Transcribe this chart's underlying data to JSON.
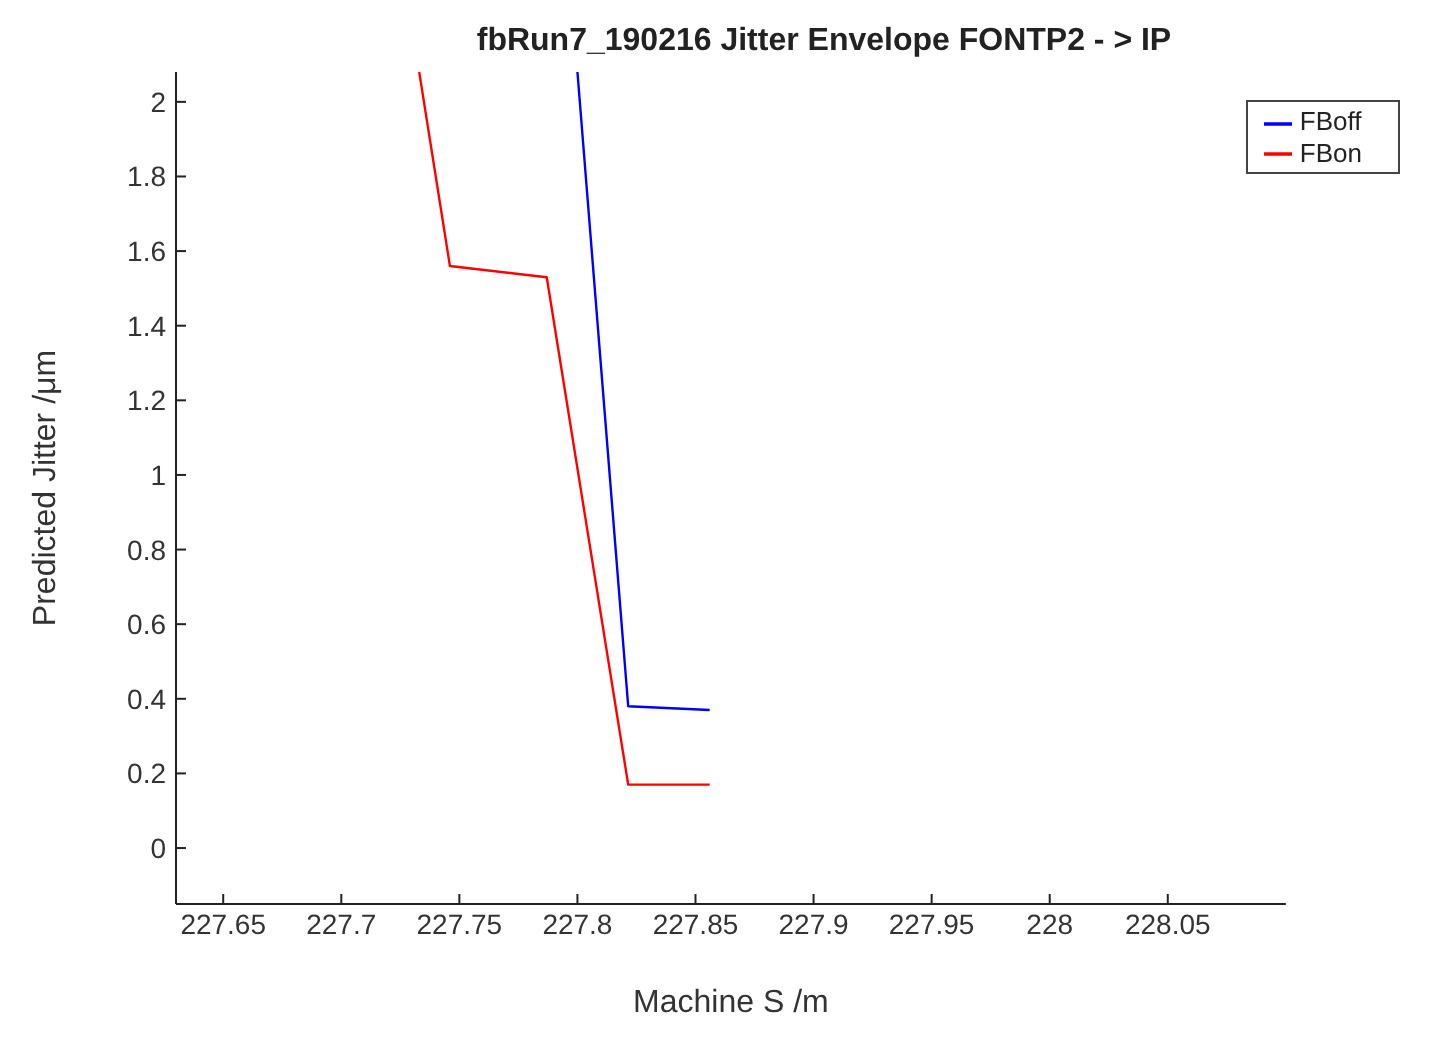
{
  "chart_data": {
    "type": "line",
    "title": "fbRun7_190216 Jitter Envelope FONTP2 - > IP",
    "xlabel": "Machine S /m",
    "ylabel": "Predicted Jitter /μm",
    "xlim": [
      227.63,
      228.1
    ],
    "xticks": [
      227.65,
      227.7,
      227.75,
      227.8,
      227.85,
      227.9,
      227.95,
      228,
      228.05
    ],
    "ylim": [
      -0.15,
      2.08
    ],
    "yticks": [
      0,
      0.2,
      0.4,
      0.6,
      0.8,
      1,
      1.2,
      1.4,
      1.6,
      1.8,
      2
    ],
    "grid": false,
    "legend": "top right",
    "marker": "none",
    "line_style": "solid",
    "series": [
      {
        "name": "FBoff",
        "color": "#0000ff",
        "x": [
          227.8,
          227.8215,
          227.856
        ],
        "values": [
          2.08,
          0.38,
          0.37
        ]
      },
      {
        "name": "FBon",
        "color": "#ff0000",
        "x": [
          227.733,
          227.746,
          227.787,
          227.8215,
          227.856
        ],
        "values": [
          2.08,
          1.56,
          1.53,
          0.17,
          0.17
        ]
      }
    ]
  }
}
